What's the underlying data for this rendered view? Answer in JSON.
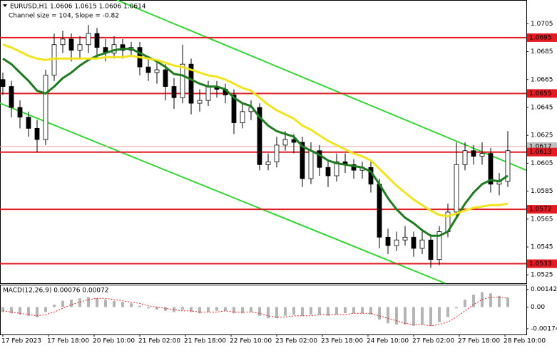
{
  "chart_data": {
    "type": "candlestick",
    "symbol_label": "EURUSD,H1  1.0606 1.0615 1.0606 1.0614",
    "channel_label": "Channel size = 104, Slope = -0.82",
    "xlim": [
      -1,
      183.5
    ],
    "xticks": [
      {
        "value": 0,
        "label": "17 Feb 2023"
      },
      {
        "value": 16,
        "label": "17 Feb 18:00"
      },
      {
        "value": 32,
        "label": "20 Feb 10:00"
      },
      {
        "value": 48,
        "label": "21 Feb 02:00"
      },
      {
        "value": 64,
        "label": "21 Feb 18:00"
      },
      {
        "value": 80,
        "label": "22 Feb 10:00"
      },
      {
        "value": 96,
        "label": "23 Feb 02:00"
      },
      {
        "value": 112,
        "label": "23 Feb 18:00"
      },
      {
        "value": 128,
        "label": "24 Feb 10:00"
      },
      {
        "value": 144,
        "label": "27 Feb 02:00"
      },
      {
        "value": 160,
        "label": "27 Feb 18:00"
      },
      {
        "value": 176,
        "label": "28 Feb 10:00"
      }
    ],
    "x": [
      0,
      3,
      6,
      9,
      12,
      15,
      18,
      21,
      24,
      27,
      30,
      33,
      36,
      39,
      42,
      45,
      48,
      51,
      54,
      57,
      60,
      63,
      66,
      69,
      72,
      75,
      78,
      81,
      84,
      87,
      90,
      93,
      96,
      99,
      102,
      105,
      108,
      111,
      114,
      117,
      120,
      123,
      126,
      129,
      132,
      135,
      138,
      141,
      144,
      147,
      150,
      153,
      156,
      159,
      162,
      165,
      168,
      171,
      174,
      177
    ],
    "open": [
      1.0665,
      1.066,
      1.0645,
      1.0638,
      1.063,
      1.0622,
      1.0668,
      1.069,
      1.0694,
      1.0686,
      1.069,
      1.0698,
      1.0688,
      1.0684,
      1.069,
      1.0686,
      1.0688,
      1.0674,
      1.067,
      1.0672,
      1.066,
      1.0652,
      1.0676,
      1.0648,
      1.065,
      1.066,
      1.0658,
      1.0654,
      1.0634,
      1.0642,
      1.0645,
      1.0604,
      1.0606,
      1.0618,
      1.0622,
      1.062,
      1.0594,
      1.0614,
      1.0602,
      1.0596,
      1.0606,
      1.0604,
      1.06,
      1.0602,
      1.059,
      1.0552,
      1.0546,
      1.055,
      1.0552,
      1.0544,
      1.055,
      1.0536,
      1.0556,
      1.057,
      1.0604,
      1.0614,
      1.061,
      1.0612,
      1.059,
      1.0592
    ],
    "high": [
      1.067,
      1.0664,
      1.065,
      1.0642,
      1.0636,
      1.0672,
      1.0698,
      1.07,
      1.0698,
      1.0696,
      1.0704,
      1.0702,
      1.0694,
      1.0696,
      1.0694,
      1.0692,
      1.0692,
      1.068,
      1.0678,
      1.0676,
      1.0666,
      1.069,
      1.068,
      1.0658,
      1.0664,
      1.0664,
      1.0662,
      1.0658,
      1.0648,
      1.065,
      1.0648,
      1.0612,
      1.0624,
      1.0628,
      1.0626,
      1.0624,
      1.062,
      1.0618,
      1.0606,
      1.0612,
      1.0612,
      1.0608,
      1.0606,
      1.0606,
      1.0594,
      1.0558,
      1.0556,
      1.056,
      1.0556,
      1.0556,
      1.0554,
      1.056,
      1.0576,
      1.062,
      1.062,
      1.0618,
      1.062,
      1.0616,
      1.0598,
      1.0628
    ],
    "low": [
      1.0654,
      1.0638,
      1.063,
      1.0624,
      1.0613,
      1.0618,
      1.0664,
      1.0684,
      1.0678,
      1.068,
      1.0684,
      1.068,
      1.0678,
      1.068,
      1.068,
      1.0682,
      1.0668,
      1.0664,
      1.0662,
      1.065,
      1.0644,
      1.0648,
      1.064,
      1.0642,
      1.0646,
      1.0652,
      1.0648,
      1.0626,
      1.063,
      1.0636,
      1.06,
      1.06,
      1.0602,
      1.0614,
      1.0612,
      1.0588,
      1.059,
      1.0596,
      1.0588,
      1.0592,
      1.0598,
      1.0594,
      1.0594,
      1.0584,
      1.0544,
      1.054,
      1.0542,
      1.0546,
      1.0538,
      1.054,
      1.053,
      1.0532,
      1.0552,
      1.0566,
      1.06,
      1.0604,
      1.0604,
      1.0584,
      1.0582,
      1.0588
    ],
    "close": [
      1.066,
      1.0645,
      1.0638,
      1.063,
      1.0622,
      1.0668,
      1.069,
      1.0694,
      1.0686,
      1.069,
      1.0698,
      1.0688,
      1.0684,
      1.069,
      1.0686,
      1.0688,
      1.0674,
      1.067,
      1.0672,
      1.066,
      1.0652,
      1.0676,
      1.0648,
      1.065,
      1.066,
      1.0658,
      1.0654,
      1.0634,
      1.0642,
      1.0645,
      1.0604,
      1.0606,
      1.0618,
      1.0622,
      1.062,
      1.0594,
      1.0614,
      1.0602,
      1.0596,
      1.0606,
      1.0604,
      1.06,
      1.0602,
      1.059,
      1.0552,
      1.0546,
      1.055,
      1.0552,
      1.0544,
      1.055,
      1.0536,
      1.0556,
      1.057,
      1.0604,
      1.0614,
      1.061,
      1.0612,
      1.059,
      1.0592,
      1.0614
    ],
    "ylim": [
      1.0519,
      1.0722
    ],
    "yticks": [
      1.0705,
      1.0685,
      1.0665,
      1.0645,
      1.0625,
      1.0605,
      1.0585,
      1.0565,
      1.0545,
      1.0525
    ],
    "levels": {
      "color": "#e31b23",
      "values": [
        1.0695,
        1.0655,
        1.0613,
        1.0572,
        1.0533
      ]
    },
    "current_price": 1.0617,
    "moving_averages": [
      {
        "color": "#1e7b1e",
        "values": [
          1.068,
          1.0676,
          1.067,
          1.0664,
          1.0657,
          1.0655,
          1.066,
          1.0666,
          1.067,
          1.0675,
          1.0679,
          1.0682,
          1.0684,
          1.0686,
          1.0687,
          1.0687,
          1.0684,
          1.0681,
          1.0678,
          1.0674,
          1.0669,
          1.0668,
          1.0665,
          1.0662,
          1.066,
          1.066,
          1.0658,
          1.0652,
          1.0648,
          1.0646,
          1.0638,
          1.0632,
          1.0628,
          1.0626,
          1.0624,
          1.0617,
          1.0614,
          1.0611,
          1.0607,
          1.0605,
          1.0604,
          1.0603,
          1.0602,
          1.0599,
          1.059,
          1.058,
          1.0572,
          1.0566,
          1.0562,
          1.0557,
          1.0553,
          1.0553,
          1.0556,
          1.0566,
          1.0576,
          1.0584,
          1.059,
          1.0593,
          1.0592,
          1.0596
        ]
      },
      {
        "color": "#f2e41c",
        "values": [
          1.069,
          1.0688,
          1.0685,
          1.0682,
          1.068,
          1.0679,
          1.068,
          1.068,
          1.068,
          1.068,
          1.068,
          1.068,
          1.0681,
          1.0681,
          1.0681,
          1.0682,
          1.0681,
          1.068,
          1.0679,
          1.0677,
          1.0675,
          1.0674,
          1.0672,
          1.067,
          1.0668,
          1.0667,
          1.0665,
          1.0662,
          1.0659,
          1.0657,
          1.0652,
          1.0647,
          1.0643,
          1.064,
          1.0637,
          1.0632,
          1.0629,
          1.0625,
          1.0621,
          1.0618,
          1.0615,
          1.0612,
          1.061,
          1.0607,
          1.0601,
          1.0595,
          1.0589,
          1.0584,
          1.0579,
          1.0575,
          1.0571,
          1.0568,
          1.0567,
          1.0569,
          1.0571,
          1.0573,
          1.0574,
          1.0575,
          1.0575,
          1.0576
        ]
      }
    ],
    "channel": [
      {
        "color": "#33d633",
        "x": [
          40,
          183.5
        ],
        "values": [
          1.0722,
          1.06
        ]
      },
      {
        "color": "#33d633",
        "x": [
          -1,
          155
        ],
        "values": [
          1.0648,
          1.0519
        ]
      }
    ],
    "macd": {
      "label": "MACD(12,26,9) 0.00076 0.00072",
      "ylim": [
        -0.0022,
        0.0018
      ],
      "yticks": [
        0.00142,
        {
          "value": 0,
          "label": "0.00"
        },
        -0.00174
      ],
      "histogram_color": "#b4b4b4",
      "signal_color": "#e31b23",
      "histogram": [
        -0.0004,
        -0.0005,
        -0.0006,
        -0.0007,
        -0.0008,
        -0.0004,
        0.0002,
        0.0005,
        0.0006,
        0.0007,
        0.0008,
        0.0007,
        0.0006,
        0.0005,
        0.0004,
        0.0003,
        0.0001,
        -0.0001,
        -0.0002,
        -0.0003,
        -0.0004,
        -0.0002,
        -0.0004,
        -0.0005,
        -0.0004,
        -0.0003,
        -0.0003,
        -0.0005,
        -0.0005,
        -0.0004,
        -0.0007,
        -0.0009,
        -0.0009,
        -0.0007,
        -0.0006,
        -0.0007,
        -0.0006,
        -0.0006,
        -0.0007,
        -0.0006,
        -0.0005,
        -0.0005,
        -0.0005,
        -0.0006,
        -0.001,
        -0.0013,
        -0.0014,
        -0.0014,
        -0.0015,
        -0.0014,
        -0.0015,
        -0.0012,
        -0.0008,
        -0.0001,
        0.0006,
        0.001,
        0.0012,
        0.0011,
        0.0009,
        0.00076
      ],
      "signal": [
        -0.0003,
        -0.0004,
        -0.0005,
        -0.0006,
        -0.0007,
        -0.0006,
        -0.0004,
        -0.0001,
        0.0002,
        0.0004,
        0.0006,
        0.0007,
        0.0007,
        0.0006,
        0.0005,
        0.0004,
        0.0003,
        0.0001,
        0,
        -0.0001,
        -0.0002,
        -0.0003,
        -0.0003,
        -0.0004,
        -0.0004,
        -0.0004,
        -0.0003,
        -0.0004,
        -0.0004,
        -0.0004,
        -0.0005,
        -0.0007,
        -0.0008,
        -0.0008,
        -0.0007,
        -0.0007,
        -0.0007,
        -0.0006,
        -0.0006,
        -0.0006,
        -0.0006,
        -0.0005,
        -0.0005,
        -0.0005,
        -0.0007,
        -0.0009,
        -0.0011,
        -0.0013,
        -0.0014,
        -0.0014,
        -0.0015,
        -0.0014,
        -0.0012,
        -0.0008,
        -0.0003,
        0.0002,
        0.0006,
        0.0008,
        0.0008,
        0.00072
      ]
    }
  }
}
